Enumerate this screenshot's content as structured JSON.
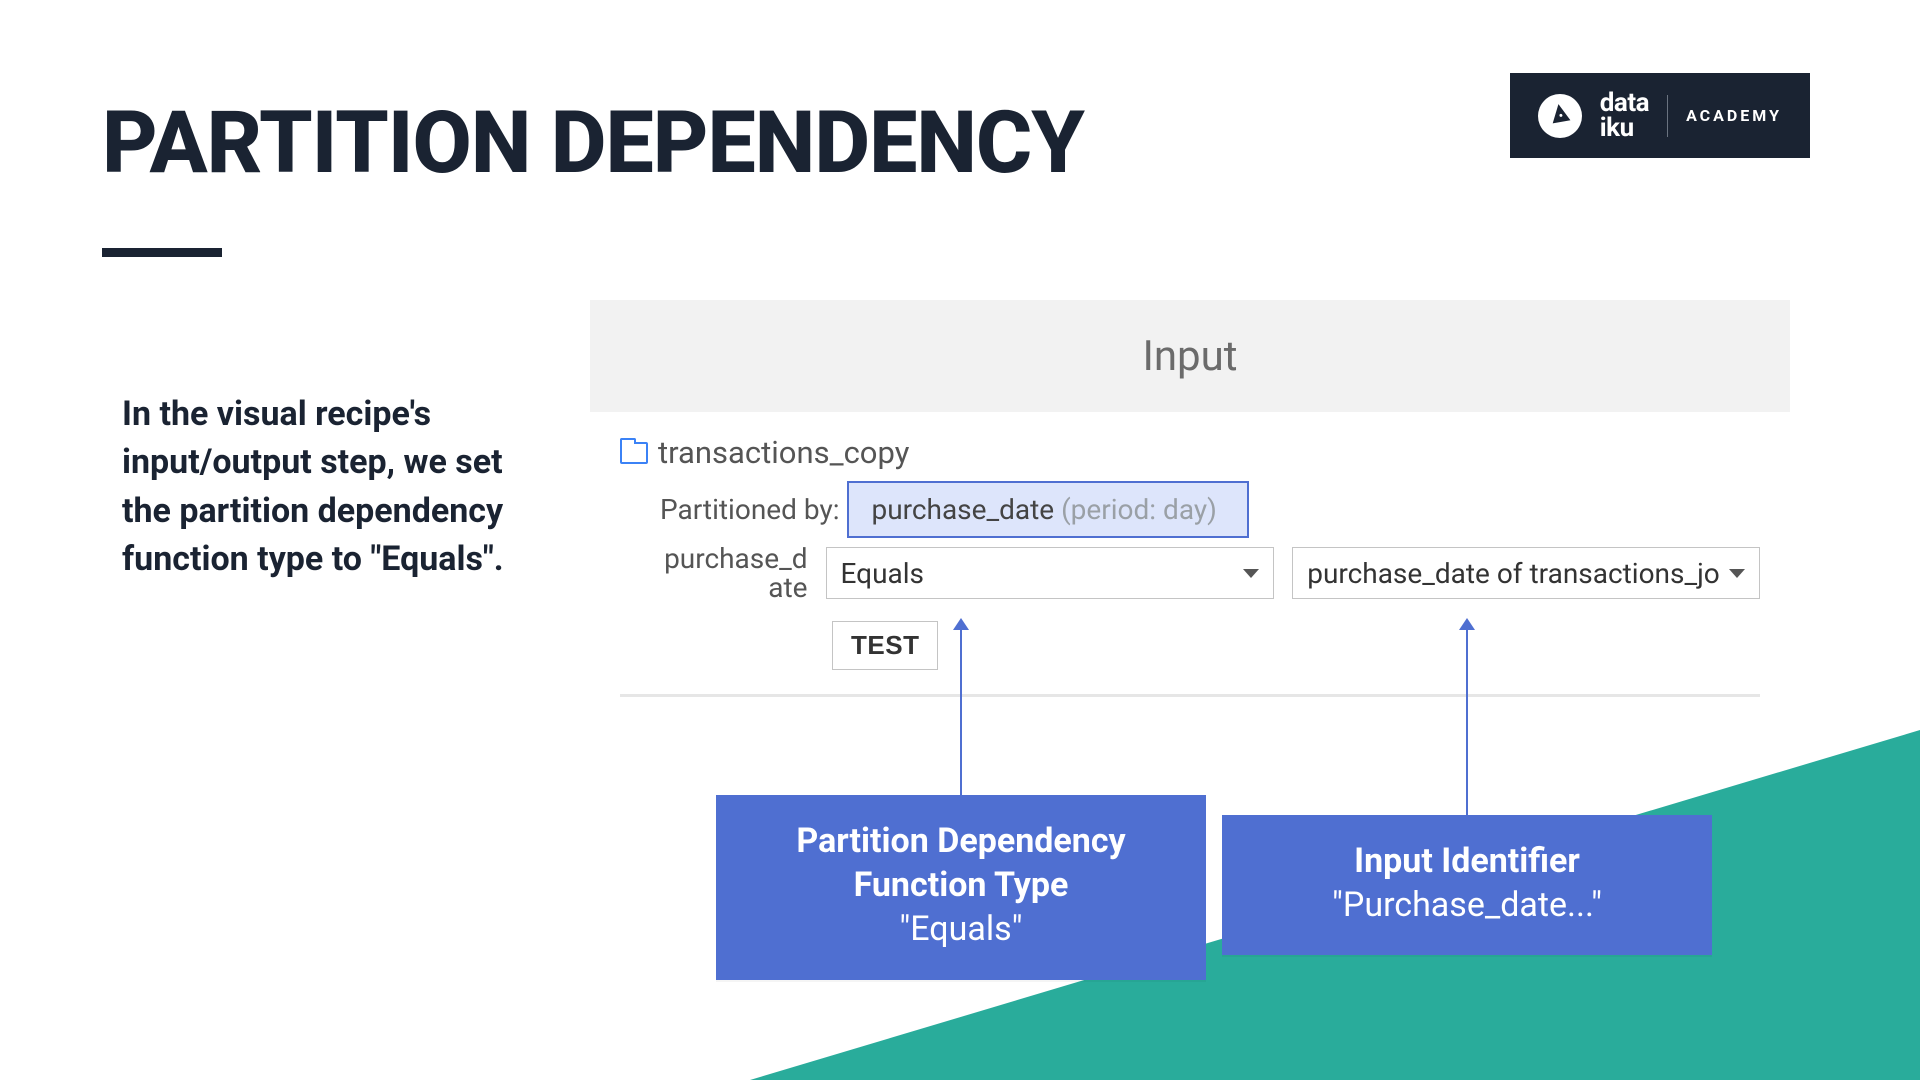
{
  "brand": {
    "name_line1": "data",
    "name_line2": "iku",
    "sub": "ACADEMY"
  },
  "title": "PARTITION DEPENDENCY",
  "body": "In the visual recipe's input/output step, we set the partition dependency function type to \"Equals\".",
  "screenshot": {
    "header": "Input",
    "dataset_name": "transactions_copy",
    "partitioned_by_label": "Partitioned by:",
    "partition_dimension": "purchase_date",
    "partition_period": "(period: day)",
    "dim_label": "purchase_d ate",
    "func_select_value": "Equals",
    "ident_select_value": "purchase_date of transactions_jo",
    "test_button": "TEST"
  },
  "callouts": {
    "left_title": "Partition Dependency Function Type",
    "left_value": "\"Equals\"",
    "right_title": "Input Identifier",
    "right_value": "\"Purchase_date...\""
  },
  "colors": {
    "brand_dark": "#1a2332",
    "callout_blue": "#4f6fd1",
    "chip_bg": "#dde5fb",
    "teal": "#1ea896",
    "panel_header": "#f2f2f2",
    "border_gray": "#c4c4c4"
  }
}
